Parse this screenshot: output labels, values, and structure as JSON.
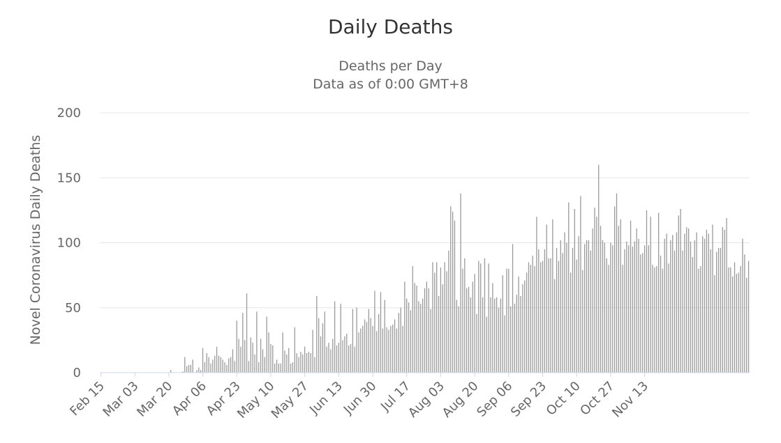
{
  "chart_data": {
    "type": "bar",
    "title": "Daily Deaths",
    "subtitle": [
      "Deaths per Day",
      "Data as of 0:00 GMT+8"
    ],
    "ylabel": "Novel Coronavirus Daily Deaths",
    "xlabel": "",
    "ylim": [
      0,
      200
    ],
    "y_ticks": [
      0,
      50,
      100,
      150,
      200
    ],
    "x_tick_labels": [
      "Feb 15",
      "Mar 03",
      "Mar 20",
      "Apr 06",
      "Apr 23",
      "May 10",
      "May 27",
      "Jun 13",
      "Jun 30",
      "Jul 17",
      "Aug 03",
      "Aug 20",
      "Sep 06",
      "Sep 23",
      "Oct 10",
      "Oct 27",
      "Nov 13"
    ],
    "start_date": "2020-02-15",
    "grid": true,
    "legend": "none",
    "bar_color": "#999999",
    "values": [
      0,
      0,
      0,
      0,
      0,
      0,
      0,
      0,
      0,
      0,
      0,
      0,
      0,
      0,
      0,
      0,
      0,
      0,
      0,
      0,
      0,
      0,
      0,
      0,
      0,
      0,
      0,
      0,
      0,
      0,
      0,
      0,
      0,
      0,
      0,
      2,
      0,
      0,
      0,
      0,
      0,
      1,
      12,
      5,
      6,
      6,
      10,
      0,
      2,
      4,
      2,
      19,
      8,
      15,
      12,
      7,
      10,
      13,
      20,
      13,
      12,
      10,
      8,
      6,
      11,
      12,
      18,
      9,
      40,
      26,
      20,
      46,
      25,
      61,
      9,
      27,
      23,
      14,
      47,
      8,
      26,
      18,
      12,
      43,
      31,
      22,
      21,
      7,
      10,
      7,
      7,
      31,
      17,
      14,
      19,
      7,
      8,
      35,
      15,
      12,
      16,
      14,
      20,
      15,
      16,
      15,
      33,
      12,
      59,
      42,
      28,
      38,
      47,
      20,
      23,
      18,
      26,
      55,
      21,
      23,
      53,
      25,
      28,
      30,
      21,
      22,
      49,
      20,
      50,
      31,
      34,
      36,
      41,
      39,
      49,
      42,
      36,
      63,
      32,
      45,
      62,
      34,
      56,
      35,
      33,
      36,
      37,
      41,
      34,
      46,
      50,
      36,
      70,
      57,
      54,
      48,
      82,
      69,
      67,
      55,
      53,
      57,
      65,
      70,
      65,
      49,
      85,
      77,
      85,
      59,
      81,
      68,
      85,
      78,
      94,
      128,
      124,
      117,
      56,
      51,
      138,
      80,
      88,
      65,
      66,
      58,
      70,
      76,
      45,
      86,
      84,
      58,
      88,
      43,
      84,
      58,
      69,
      57,
      58,
      50,
      57,
      75,
      44,
      80,
      80,
      51,
      99,
      53,
      60,
      74,
      59,
      68,
      71,
      77,
      85,
      83,
      90,
      82,
      120,
      95,
      85,
      86,
      95,
      114,
      88,
      88,
      118,
      72,
      96,
      86,
      102,
      92,
      108,
      100,
      131,
      77,
      96,
      126,
      87,
      105,
      136,
      79,
      99,
      102,
      102,
      94,
      111,
      127,
      120,
      160,
      113,
      102,
      100,
      88,
      83,
      100,
      98,
      128,
      138,
      113,
      118,
      83,
      95,
      101,
      98,
      117,
      97,
      101,
      111,
      103,
      91,
      92,
      98,
      125,
      98,
      120,
      83,
      81,
      82,
      123,
      90,
      80,
      103,
      107,
      84,
      102,
      106,
      94,
      108,
      121,
      126,
      94,
      107,
      112,
      111,
      101,
      89,
      102,
      108,
      80,
      82,
      105,
      103,
      110,
      107,
      95,
      114,
      75,
      93,
      96,
      96,
      112,
      110,
      119,
      81,
      81,
      74,
      85,
      76,
      77,
      82,
      103,
      91,
      73,
      86
    ]
  }
}
